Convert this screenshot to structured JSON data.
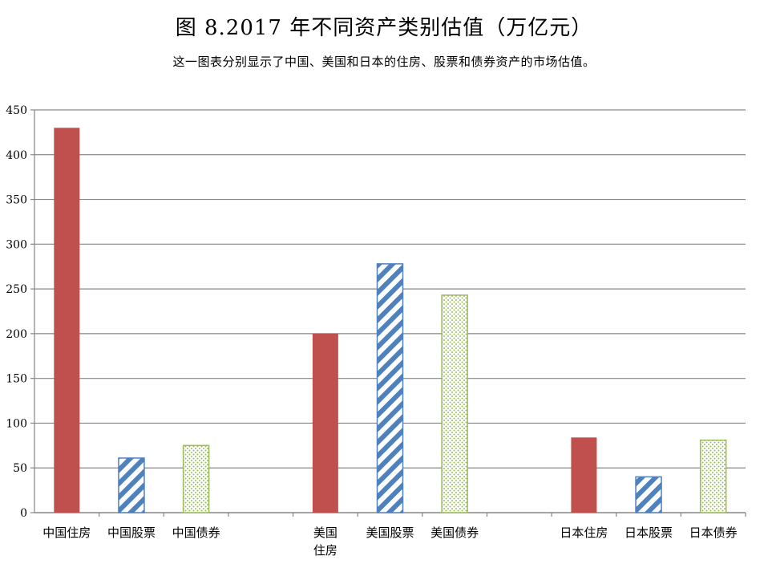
{
  "chart_data": {
    "type": "bar",
    "title": "图 8.2017 年不同资产类别估值（万亿元）",
    "subtitle": "这一图表分别显示了中国、美国和日本的住房、股票和债券资产的市场估值。",
    "xlabel": "",
    "ylabel": "",
    "ylim": [
      0,
      450
    ],
    "yticks": [
      0,
      50,
      100,
      150,
      200,
      250,
      300,
      350,
      400,
      450
    ],
    "grid": true,
    "categories": [
      {
        "label": "中国住房",
        "lines": [
          "中国住房"
        ],
        "value": 430,
        "style": "housing"
      },
      {
        "label": "中国股票",
        "lines": [
          "中国股票"
        ],
        "value": 61,
        "style": "stock"
      },
      {
        "label": "中国债券",
        "lines": [
          "中国债券"
        ],
        "value": 75,
        "style": "bond"
      },
      {
        "label": "",
        "lines": [],
        "value": null,
        "style": "gap"
      },
      {
        "label": "美国住房",
        "lines": [
          "美国",
          "住房"
        ],
        "value": 200,
        "style": "housing"
      },
      {
        "label": "美国股票",
        "lines": [
          "美国股票"
        ],
        "value": 278,
        "style": "stock"
      },
      {
        "label": "美国债券",
        "lines": [
          "美国债券"
        ],
        "value": 243,
        "style": "bond"
      },
      {
        "label": "",
        "lines": [],
        "value": null,
        "style": "gap"
      },
      {
        "label": "日本住房",
        "lines": [
          "日本住房"
        ],
        "value": 84,
        "style": "housing"
      },
      {
        "label": "日本股票",
        "lines": [
          "日本股票"
        ],
        "value": 40,
        "style": "stock"
      },
      {
        "label": "日本债券",
        "lines": [
          "日本债券"
        ],
        "value": 81,
        "style": "bond"
      }
    ],
    "colors": {
      "housing": "#c0504d",
      "stock": "#4f81bd",
      "bond": "#9bbb59",
      "grid": "#868686"
    }
  }
}
